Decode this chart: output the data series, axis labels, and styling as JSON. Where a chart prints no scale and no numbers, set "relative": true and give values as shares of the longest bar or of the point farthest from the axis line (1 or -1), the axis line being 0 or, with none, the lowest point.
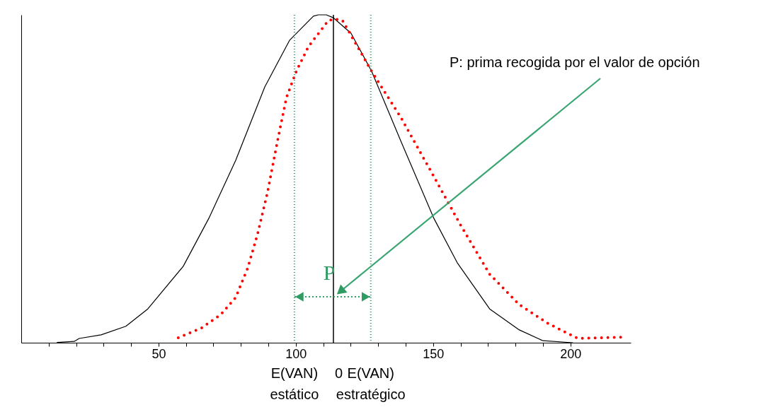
{
  "chart_data": {
    "type": "line",
    "relative": true,
    "grid": false,
    "marker": "none",
    "xlim": [
      0,
      222
    ],
    "xticks": [
      {
        "value": 10,
        "label": null
      },
      {
        "value": 20,
        "label": null
      },
      {
        "value": 30,
        "label": null
      },
      {
        "value": 40,
        "label": null
      },
      50,
      {
        "value": 60,
        "label": null
      },
      {
        "value": 70,
        "label": null
      },
      {
        "value": 80,
        "label": null
      },
      {
        "value": 90,
        "label": null
      },
      100,
      {
        "value": 110,
        "label": null
      },
      {
        "value": 120,
        "label": null
      },
      {
        "value": 130,
        "label": null
      },
      {
        "value": 140,
        "label": null
      },
      150,
      {
        "value": 160,
        "label": null
      },
      {
        "value": 170,
        "label": null
      },
      {
        "value": 180,
        "label": null
      },
      {
        "value": 190,
        "label": null
      },
      200
    ],
    "series": [
      {
        "color": "#000000",
        "line_style": "solid",
        "x": [
          13.1,
          19.3,
          21.1,
          29.1,
          38.1,
          46.1,
          59.0,
          68.3,
          78.1,
          88.7,
          97.7,
          106.4,
          108.2,
          111.1,
          113.7,
          120.1,
          127.6,
          138.4,
          150.3,
          158.8,
          170.6,
          181.4,
          190,
          200.8
        ],
        "values": [
          0.001,
          0.004,
          0.013,
          0.024,
          0.05,
          0.103,
          0.233,
          0.379,
          0.556,
          0.78,
          0.922,
          0.996,
          1.0,
          1.0,
          0.991,
          0.944,
          0.828,
          0.612,
          0.379,
          0.244,
          0.103,
          0.039,
          0.006,
          0
        ]
      },
      {
        "color": "#ff0000",
        "line_style": "dotted",
        "x": [
          57.2,
          65.7,
          72.7,
          78.1,
          82.5,
          86.1,
          89.7,
          93.3,
          96.6,
          100.3,
          104.6,
          111.9,
          114.4,
          117,
          127.6,
          138.4,
          149.2,
          159.8,
          170.6,
          181.4,
          192,
          202.8,
          219.6
        ],
        "values": [
          0.015,
          0.045,
          0.086,
          0.138,
          0.228,
          0.332,
          0.459,
          0.614,
          0.748,
          0.83,
          0.903,
          0.983,
          0.987,
          0.983,
          0.828,
          0.685,
          0.523,
          0.362,
          0.209,
          0.116,
          0.058,
          0.013,
          0.017
        ]
      }
    ],
    "ref_lines": [
      {
        "axis": "x",
        "value": 113.7,
        "color": "#000000",
        "line_style": "solid"
      },
      {
        "axis": "x",
        "value": 99.5,
        "label": "E(VAN)\nestático",
        "color": "#2e9b62",
        "line_style": "dotted"
      },
      {
        "axis": "x",
        "value": 127.3,
        "label": "E(VAN)\nestratégico",
        "color": "#2e9b62",
        "line_style": "dotted"
      }
    ],
    "annotations": [
      {
        "text": "P",
        "x": 113.7,
        "y": 0.14
      },
      "P: prima recogida por el valor de opción",
      "0"
    ]
  }
}
